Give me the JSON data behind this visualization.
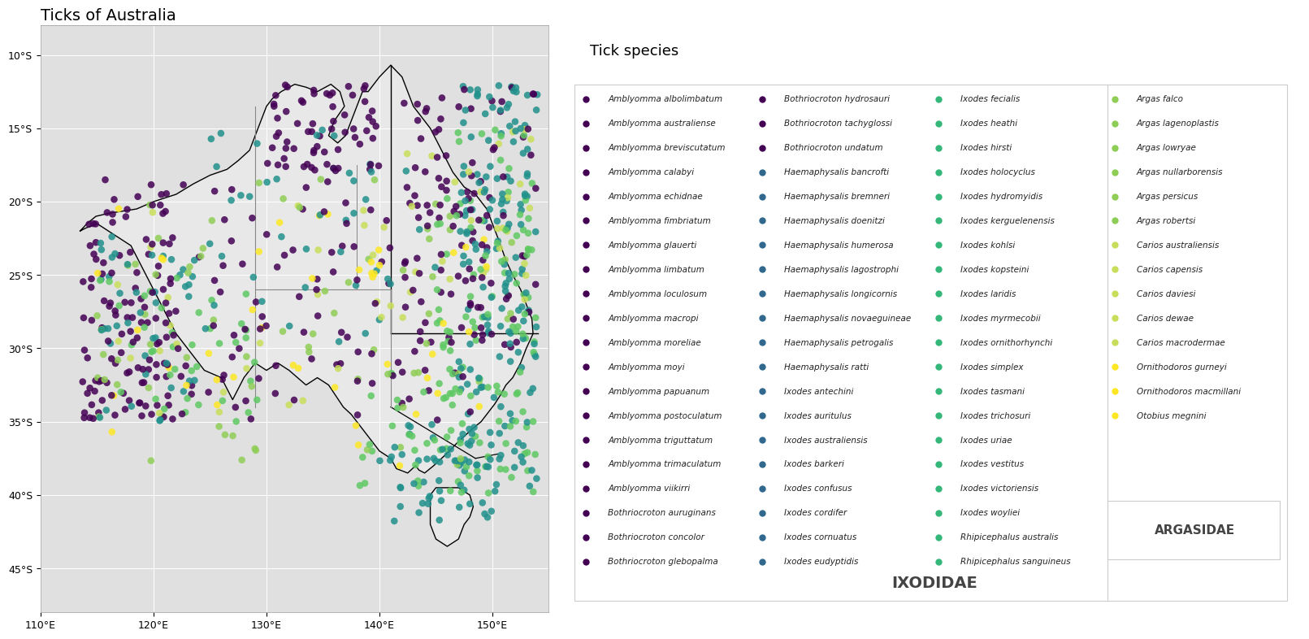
{
  "title": "Ticks of Australia",
  "legend_title": "Tick species",
  "ixodidae_label": "IXODIDAE",
  "argasidae_label": "ARGASIDAE",
  "xlim": [
    110,
    155
  ],
  "ylim": [
    -48,
    -8
  ],
  "xticks": [
    110,
    120,
    130,
    140,
    150
  ],
  "yticks": [
    -10,
    -15,
    -20,
    -25,
    -30,
    -35,
    -40,
    -45
  ],
  "col1_species": [
    "Amblyomma albolimbatum",
    "Amblyomma australiense",
    "Amblyomma breviscutatum",
    "Amblyomma calabyi",
    "Amblyomma echidnae",
    "Amblyomma fimbriatum",
    "Amblyomma glauerti",
    "Amblyomma limbatum",
    "Amblyomma loculosum",
    "Amblyomma macropi",
    "Amblyomma moreliae",
    "Amblyomma moyi",
    "Amblyomma papuanum",
    "Amblyomma postoculatum",
    "Amblyomma triguttatum",
    "Amblyomma trimaculatum",
    "Amblyomma viikirri",
    "Bothriocroton auruginans",
    "Bothriocroton concolor",
    "Bothriocroton glebopalma"
  ],
  "col1_colors": [
    "#440154",
    "#440154",
    "#440154",
    "#440154",
    "#440154",
    "#440154",
    "#440154",
    "#440154",
    "#440154",
    "#440154",
    "#440154",
    "#440154",
    "#440154",
    "#440154",
    "#440154",
    "#440154",
    "#440154",
    "#440154",
    "#440154",
    "#440154"
  ],
  "col2_species": [
    "Bothriocroton hydrosauri",
    "Bothriocroton tachyglossi",
    "Bothriocroton undatum",
    "Haemaphysalis bancrofti",
    "Haemaphysalis bremneri",
    "Haemaphysalis doenitzi",
    "Haemaphysalis humerosa",
    "Haemaphysalis lagostrophi",
    "Haemaphysalis longicornis",
    "Haemaphysalis novaeguineae",
    "Haemaphysalis petrogalis",
    "Haemaphysalis ratti",
    "Ixodes antechini",
    "Ixodes auritulus",
    "Ixodes australiensis",
    "Ixodes barkeri",
    "Ixodes confusus",
    "Ixodes cordifer",
    "Ixodes cornuatus",
    "Ixodes eudyptidis"
  ],
  "col2_colors": [
    "#440154",
    "#440154",
    "#440154",
    "#31688e",
    "#31688e",
    "#31688e",
    "#31688e",
    "#31688e",
    "#31688e",
    "#31688e",
    "#31688e",
    "#31688e",
    "#31688e",
    "#31688e",
    "#31688e",
    "#31688e",
    "#31688e",
    "#31688e",
    "#31688e",
    "#31688e"
  ],
  "col3_species": [
    "Ixodes fecialis",
    "Ixodes heathi",
    "Ixodes hirsti",
    "Ixodes holocyclus",
    "Ixodes hydromyidis",
    "Ixodes kerguelenensis",
    "Ixodes kohlsi",
    "Ixodes kopsteini",
    "Ixodes laridis",
    "Ixodes myrmecobii",
    "Ixodes ornithorhynchi",
    "Ixodes simplex",
    "Ixodes tasmani",
    "Ixodes trichosuri",
    "Ixodes uriae",
    "Ixodes vestitus",
    "Ixodes victoriensis",
    "Ixodes woyliei",
    "Rhipicephalus australis",
    "Rhipicephalus sanguineus"
  ],
  "col3_colors": [
    "#35b779",
    "#35b779",
    "#35b779",
    "#35b779",
    "#35b779",
    "#35b779",
    "#35b779",
    "#35b779",
    "#35b779",
    "#35b779",
    "#35b779",
    "#35b779",
    "#35b779",
    "#35b779",
    "#35b779",
    "#35b779",
    "#35b779",
    "#35b779",
    "#35b779",
    "#35b779"
  ],
  "col4_species": [
    "Argas falco",
    "Argas lagenoplastis",
    "Argas lowryae",
    "Argas nullarborensis",
    "Argas persicus",
    "Argas robertsi",
    "Carios australiensis",
    "Carios capensis",
    "Carios daviesi",
    "Carios dewae",
    "Carios macrodermae",
    "Ornithodoros gurneyi",
    "Ornithodoros macmillani",
    "Otobius megnini"
  ],
  "col4_colors": [
    "#8fce56",
    "#8fce56",
    "#8fce56",
    "#8fce56",
    "#8fce56",
    "#8fce56",
    "#c8de5a",
    "#c8de5a",
    "#c8de5a",
    "#c8de5a",
    "#c8de5a",
    "#fde725",
    "#fde725",
    "#fde725"
  ]
}
